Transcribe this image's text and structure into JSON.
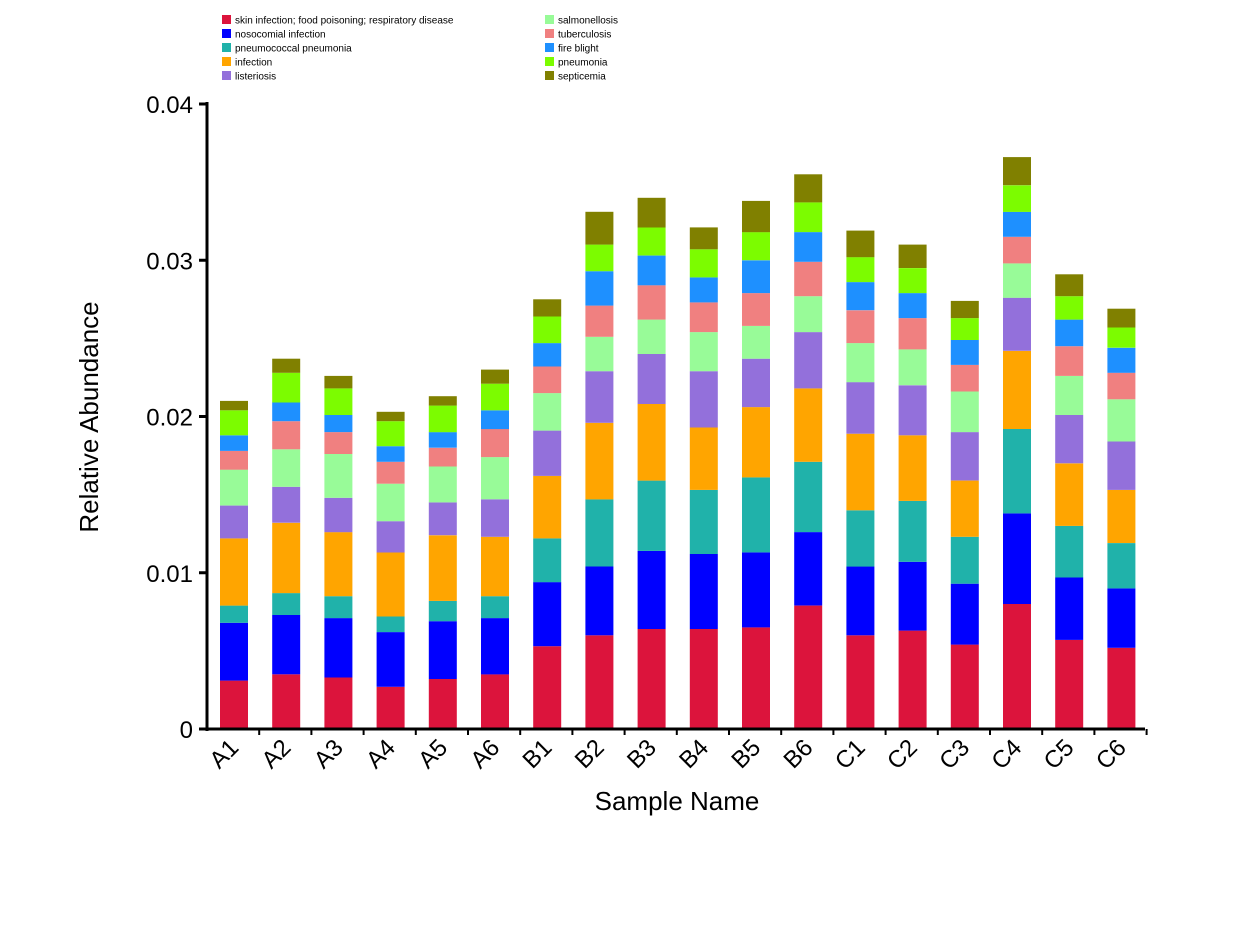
{
  "chart_data": {
    "type": "bar",
    "stacked": true,
    "title": "",
    "xlabel": "Sample Name",
    "ylabel": "Relative Abundance",
    "ylim": [
      0,
      0.04
    ],
    "yticks": [
      0,
      0.01,
      0.02,
      0.03,
      0.04
    ],
    "ytick_labels": [
      "0",
      "0.01",
      "0.02",
      "0.03",
      "0.04"
    ],
    "grid": false,
    "legend_position": "top",
    "categories": [
      "A1",
      "A2",
      "A3",
      "A4",
      "A5",
      "A6",
      "B1",
      "B2",
      "B3",
      "B4",
      "B5",
      "B6",
      "C1",
      "C2",
      "C3",
      "C4",
      "C5",
      "C6"
    ],
    "series": [
      {
        "name": "skin infection; food poisoning; respiratory disease",
        "color": "#DC143C",
        "values": [
          0.0031,
          0.0035,
          0.0033,
          0.0027,
          0.0032,
          0.0035,
          0.0053,
          0.006,
          0.0064,
          0.0064,
          0.0065,
          0.0079,
          0.006,
          0.0063,
          0.0054,
          0.008,
          0.0057,
          0.0052
        ]
      },
      {
        "name": "nosocomial infection",
        "color": "#0000FF",
        "values": [
          0.0037,
          0.0038,
          0.0038,
          0.0035,
          0.0037,
          0.0036,
          0.0041,
          0.0044,
          0.005,
          0.0048,
          0.0048,
          0.0047,
          0.0044,
          0.0044,
          0.0039,
          0.0058,
          0.004,
          0.0038
        ]
      },
      {
        "name": "pneumococcal pneumonia",
        "color": "#20B2AA",
        "values": [
          0.0011,
          0.0014,
          0.0014,
          0.001,
          0.0013,
          0.0014,
          0.0028,
          0.0043,
          0.0045,
          0.0041,
          0.0048,
          0.0045,
          0.0036,
          0.0039,
          0.003,
          0.0054,
          0.0033,
          0.0029
        ]
      },
      {
        "name": "infection",
        "color": "#FFA500",
        "values": [
          0.0043,
          0.0045,
          0.0041,
          0.0041,
          0.0042,
          0.0038,
          0.004,
          0.0049,
          0.0049,
          0.004,
          0.0045,
          0.0047,
          0.0049,
          0.0042,
          0.0036,
          0.005,
          0.004,
          0.0034
        ]
      },
      {
        "name": "listeriosis",
        "color": "#9370DB",
        "values": [
          0.0021,
          0.0023,
          0.0022,
          0.002,
          0.0021,
          0.0024,
          0.0029,
          0.0033,
          0.0032,
          0.0036,
          0.0031,
          0.0036,
          0.0033,
          0.0032,
          0.0031,
          0.0034,
          0.0031,
          0.0031
        ]
      },
      {
        "name": "salmonellosis",
        "color": "#98FB98",
        "values": [
          0.0023,
          0.0024,
          0.0028,
          0.0024,
          0.0023,
          0.0027,
          0.0024,
          0.0022,
          0.0022,
          0.0025,
          0.0021,
          0.0023,
          0.0025,
          0.0023,
          0.0026,
          0.0022,
          0.0025,
          0.0027
        ]
      },
      {
        "name": "tuberculosis",
        "color": "#F08080",
        "values": [
          0.0012,
          0.0018,
          0.0014,
          0.0014,
          0.0012,
          0.0018,
          0.0017,
          0.002,
          0.0022,
          0.0019,
          0.0021,
          0.0022,
          0.0021,
          0.002,
          0.0017,
          0.0017,
          0.0019,
          0.0017
        ]
      },
      {
        "name": "fire blight",
        "color": "#1E90FF",
        "values": [
          0.001,
          0.0012,
          0.0011,
          0.001,
          0.001,
          0.0012,
          0.0015,
          0.0022,
          0.0019,
          0.0016,
          0.0021,
          0.0019,
          0.0018,
          0.0016,
          0.0016,
          0.0016,
          0.0017,
          0.0016
        ]
      },
      {
        "name": "pneumonia",
        "color": "#7CFC00",
        "values": [
          0.0016,
          0.0019,
          0.0017,
          0.0016,
          0.0017,
          0.0017,
          0.0017,
          0.0017,
          0.0018,
          0.0018,
          0.0018,
          0.0019,
          0.0016,
          0.0016,
          0.0014,
          0.0017,
          0.0015,
          0.0013
        ]
      },
      {
        "name": "septicemia",
        "color": "#808000",
        "values": [
          0.0006,
          0.0009,
          0.0008,
          0.0006,
          0.0006,
          0.0009,
          0.0011,
          0.0021,
          0.0019,
          0.0014,
          0.002,
          0.0018,
          0.0017,
          0.0015,
          0.0011,
          0.0018,
          0.0014,
          0.0012
        ]
      }
    ]
  }
}
